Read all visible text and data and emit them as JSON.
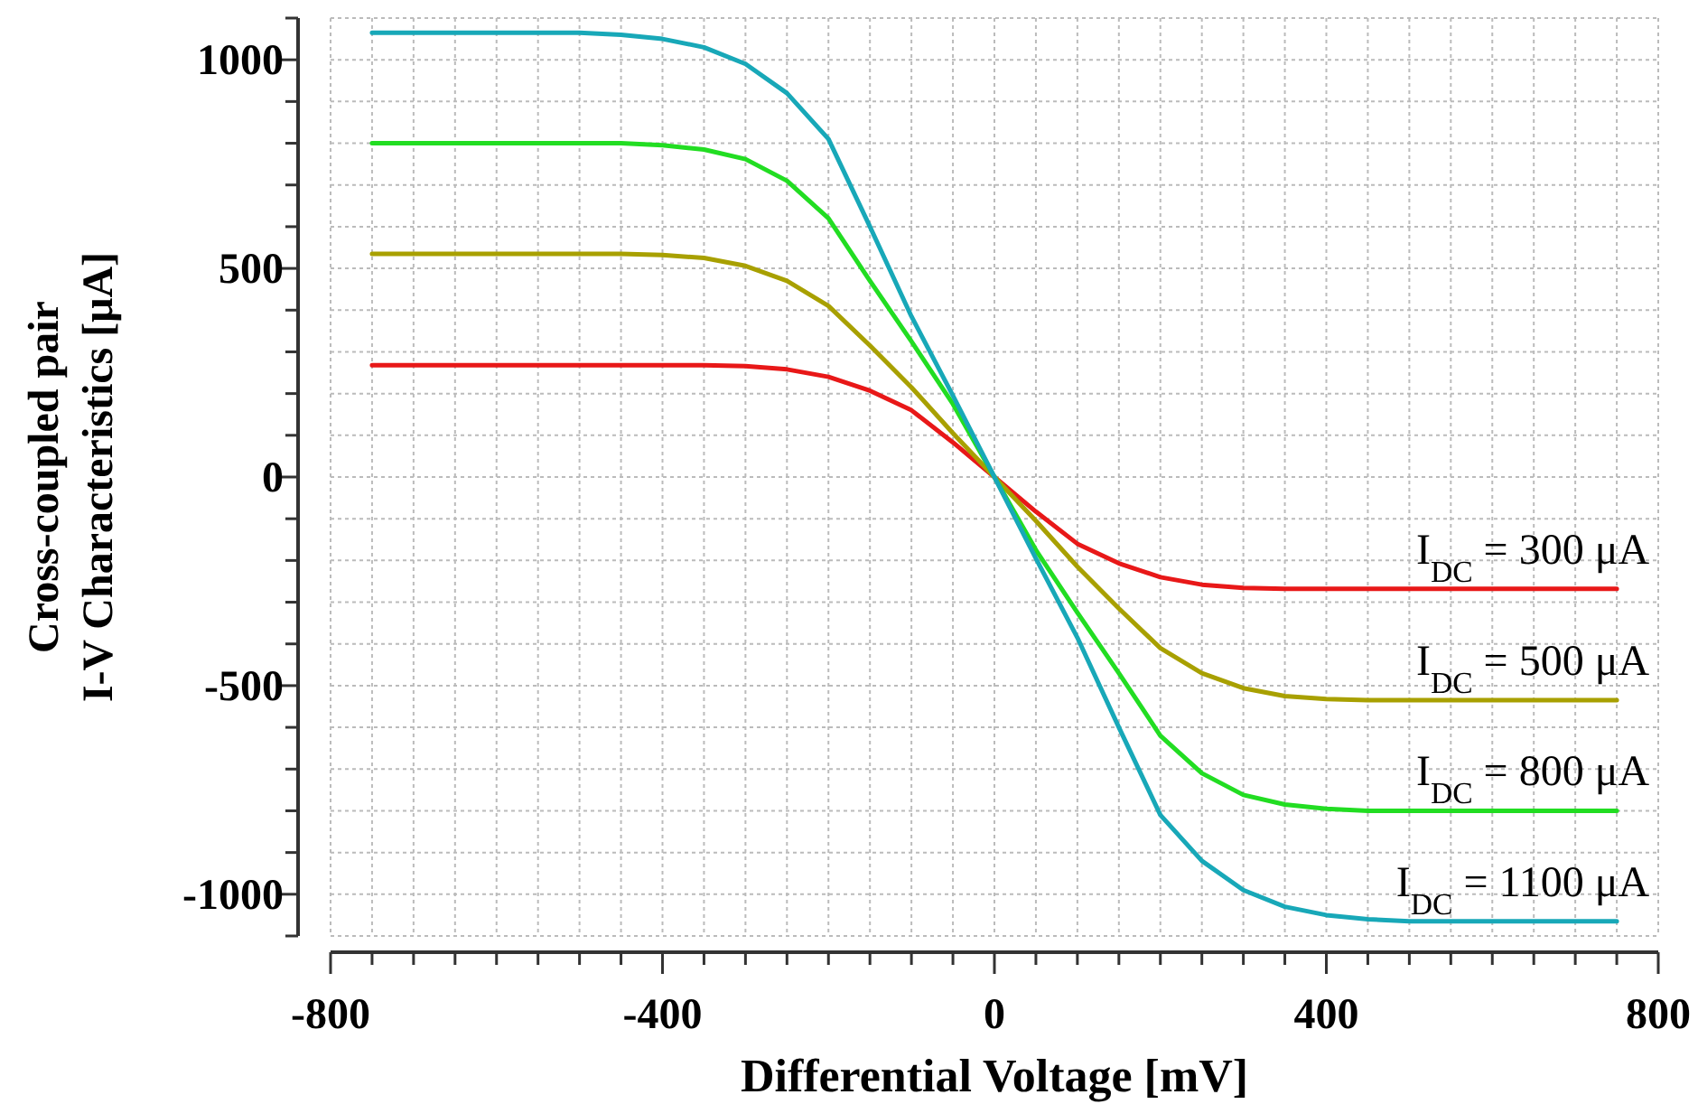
{
  "chart_data": {
    "type": "line",
    "xlabel": "Differential Voltage [mV]",
    "ylabel": "Cross-coupled pair\nI-V Characteristics [μA]",
    "x": [
      -750,
      -700,
      -650,
      -600,
      -550,
      -500,
      -450,
      -400,
      -350,
      -300,
      -250,
      -200,
      -150,
      -100,
      -50,
      0,
      50,
      100,
      150,
      200,
      250,
      300,
      350,
      400,
      450,
      500,
      550,
      600,
      650,
      700,
      750
    ],
    "series": [
      {
        "name": "I$_{DC}$ = 300 μA",
        "color": "#e81818",
        "values": [
          268,
          268,
          268,
          268,
          268,
          268,
          268,
          268,
          268,
          266,
          258,
          240,
          207,
          160,
          83,
          0,
          -83,
          -160,
          -207,
          -240,
          -258,
          -266,
          -268,
          -268,
          -268,
          -268,
          -268,
          -268,
          -268,
          -268,
          -268
        ]
      },
      {
        "name": "I$_{DC}$ = 500 μA",
        "color": "#a8a000",
        "values": [
          535,
          535,
          535,
          535,
          535,
          535,
          535,
          532,
          525,
          506,
          470,
          410,
          315,
          215,
          105,
          0,
          -105,
          -215,
          -315,
          -410,
          -470,
          -506,
          -525,
          -532,
          -535,
          -535,
          -535,
          -535,
          -535,
          -535,
          -535
        ]
      },
      {
        "name": "I$_{DC}$ = 800 μA",
        "color": "#22dd22",
        "values": [
          800,
          800,
          800,
          800,
          800,
          800,
          800,
          795,
          785,
          762,
          710,
          620,
          470,
          325,
          175,
          0,
          -175,
          -325,
          -470,
          -620,
          -710,
          -762,
          -785,
          -795,
          -800,
          -800,
          -800,
          -800,
          -800,
          -800,
          -800
        ]
      },
      {
        "name": "I$_{DC}$ = 1100 μA",
        "color": "#18a8b8",
        "values": [
          1065,
          1065,
          1065,
          1065,
          1065,
          1065,
          1060,
          1050,
          1030,
          990,
          920,
          810,
          600,
          385,
          195,
          0,
          -195,
          -385,
          -600,
          -810,
          -920,
          -990,
          -1030,
          -1050,
          -1060,
          -1065,
          -1065,
          -1065,
          -1065,
          -1065,
          -1065
        ]
      }
    ],
    "xlim": [
      -800,
      800
    ],
    "xticks": [
      -800,
      {
        "value": -750,
        "label": null
      },
      {
        "value": -700,
        "label": null
      },
      {
        "value": -650,
        "label": null
      },
      {
        "value": -600,
        "label": null
      },
      {
        "value": -550,
        "label": null
      },
      {
        "value": -500,
        "label": null
      },
      {
        "value": -450,
        "label": null
      },
      -400,
      {
        "value": -350,
        "label": null
      },
      {
        "value": -300,
        "label": null
      },
      {
        "value": -250,
        "label": null
      },
      {
        "value": -200,
        "label": null
      },
      {
        "value": -150,
        "label": null
      },
      {
        "value": -100,
        "label": null
      },
      {
        "value": -50,
        "label": null
      },
      0,
      {
        "value": 50,
        "label": null
      },
      {
        "value": 100,
        "label": null
      },
      {
        "value": 150,
        "label": null
      },
      {
        "value": 200,
        "label": null
      },
      {
        "value": 250,
        "label": null
      },
      {
        "value": 300,
        "label": null
      },
      {
        "value": 350,
        "label": null
      },
      400,
      {
        "value": 450,
        "label": null
      },
      {
        "value": 500,
        "label": null
      },
      {
        "value": 550,
        "label": null
      },
      {
        "value": 600,
        "label": null
      },
      {
        "value": 650,
        "label": null
      },
      {
        "value": 700,
        "label": null
      },
      {
        "value": 750,
        "label": null
      },
      800
    ],
    "ylim": [
      -1100,
      1100
    ],
    "yticks": [
      {
        "value": -1100,
        "label": null
      },
      -1000,
      {
        "value": -900,
        "label": null
      },
      {
        "value": -800,
        "label": null
      },
      {
        "value": -700,
        "label": null
      },
      {
        "value": -600,
        "label": null
      },
      -500,
      {
        "value": -400,
        "label": null
      },
      {
        "value": -300,
        "label": null
      },
      {
        "value": -200,
        "label": null
      },
      {
        "value": -100,
        "label": null
      },
      0,
      {
        "value": 100,
        "label": null
      },
      {
        "value": 200,
        "label": null
      },
      {
        "value": 300,
        "label": null
      },
      {
        "value": 400,
        "label": null
      },
      500,
      {
        "value": 600,
        "label": null
      },
      {
        "value": 700,
        "label": null
      },
      {
        "value": 800,
        "label": null
      },
      {
        "value": 900,
        "label": null
      },
      1000,
      {
        "value": 1100,
        "label": null
      }
    ],
    "grid": true,
    "marker": "none",
    "line_style": "solid"
  }
}
